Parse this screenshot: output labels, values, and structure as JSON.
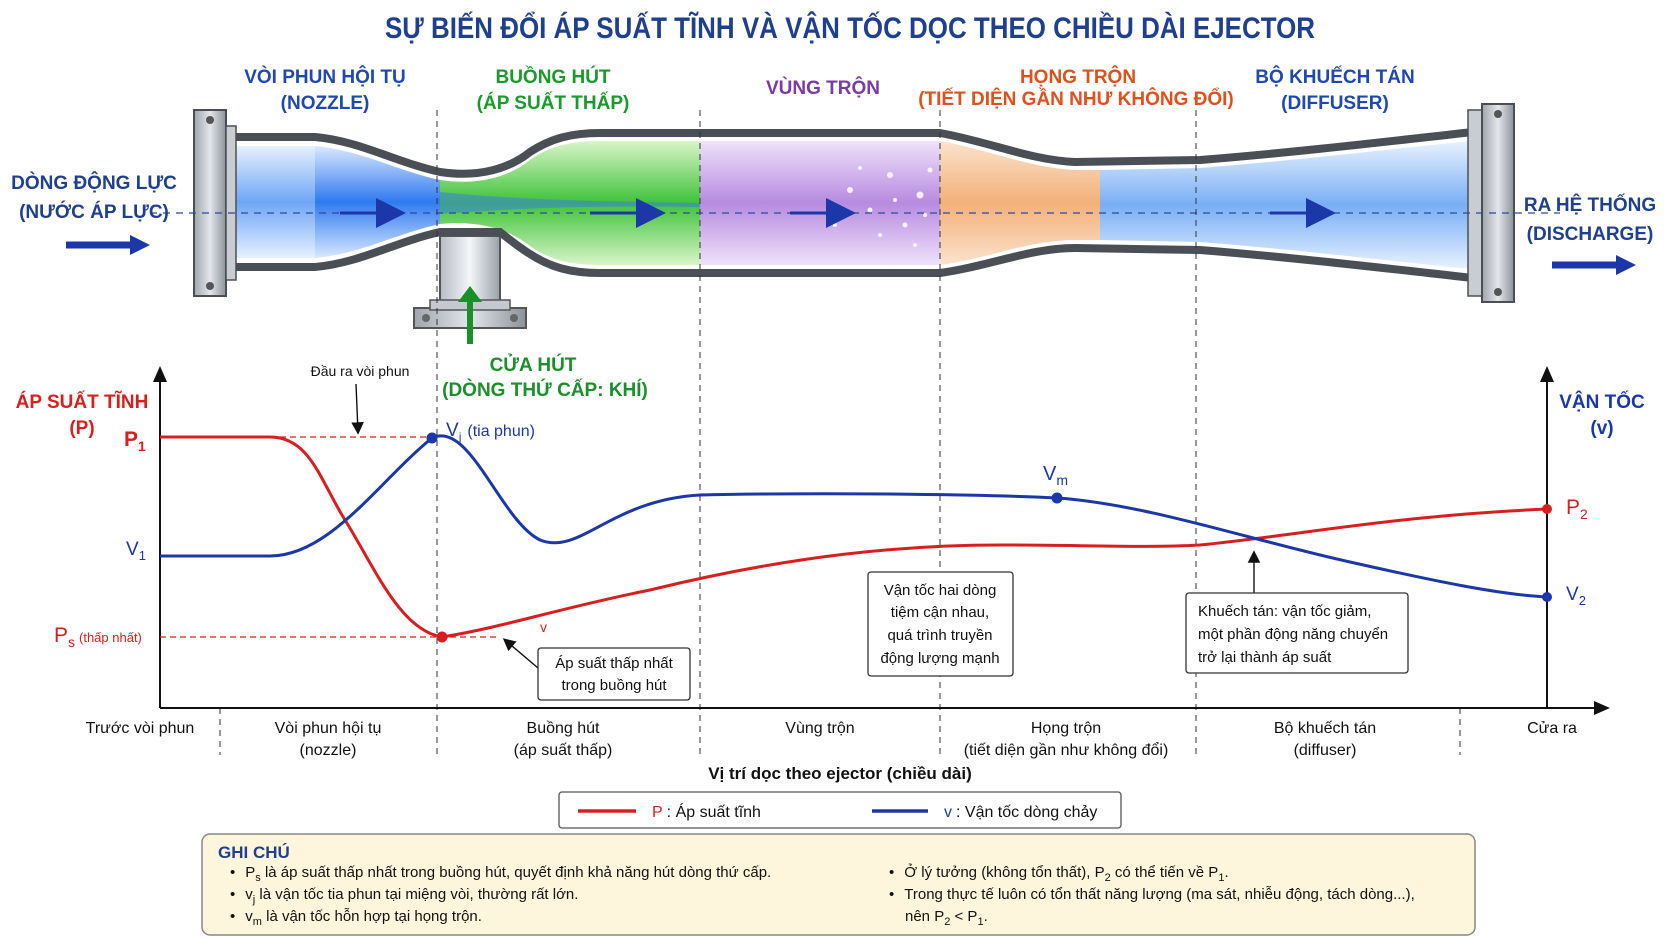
{
  "title": "SỰ BIẾN ĐỔI ÁP SUẤT TĨNH VÀ VẬN TỐC DỌC THEO CHIỀU DÀI EJECTOR",
  "sections": {
    "nozzle": {
      "line1": "VÒI PHUN HỘI TỤ",
      "line2": "(NOZZLE)",
      "color": "#1f49b0"
    },
    "suction_chamber": {
      "line1": "BUỒNG HÚT",
      "line2": "(ÁP SUẤT THẤP)",
      "color": "#1a9a2a"
    },
    "mixing_zone": {
      "line1": "VÙNG TRỘN",
      "color": "#7a3aa8"
    },
    "mixing_throat": {
      "line1": "HỌNG TRỘN",
      "line2": "(TIẾT DIỆN GẦN NHƯ KHÔNG ĐỔI)",
      "color": "#e0501c"
    },
    "diffuser": {
      "line1": "BỘ KHUẾCH TÁN",
      "line2": "(DIFFUSER)",
      "color": "#1f49b0"
    }
  },
  "inlet": {
    "line1": "DÒNG ĐỘNG LỰC",
    "line2": "(NƯỚC ÁP LỰC)"
  },
  "outlet": {
    "line1": "RA HỆ THỐNG",
    "line2": "(DISCHARGE)"
  },
  "suction_port": {
    "line1": "CỬA HÚT",
    "line2": "(DÒNG THỨ CẤP: KHÍ)"
  },
  "chart": {
    "left_axis": {
      "line1": "ÁP SUẤT TĨNH",
      "line2": "(P)"
    },
    "right_axis": {
      "line1": "VẬN TỐC",
      "line2": "(v)"
    },
    "labels": {
      "P1": "P",
      "P1_sub": "1",
      "V1": "V",
      "V1_sub": "1",
      "Ps": "P",
      "Ps_sub": "s",
      "Ps_note": "(thấp nhất)",
      "P2": "P",
      "P2_sub": "2",
      "V2": "V",
      "V2_sub": "2",
      "Vj": "V",
      "Vj_sub": "j",
      "Vj_note": "(tia phun)",
      "Vm": "V",
      "Vm_sub": "m",
      "v_mark": "v"
    },
    "nozzle_exit_note": "Đầu ra vòi phun",
    "x_title": "Vị trí dọc theo ejector (chiều dài)",
    "x_categories": [
      {
        "line1": "Trước vòi phun",
        "line2": ""
      },
      {
        "line1": "Vòi phun hội tụ",
        "line2": "(nozzle)"
      },
      {
        "line1": "Buồng hút",
        "line2": "(áp suất thấp)"
      },
      {
        "line1": "Vùng trộn",
        "line2": ""
      },
      {
        "line1": "Họng trộn",
        "line2": "(tiết diện gần như không đổi)"
      },
      {
        "line1": "Bộ khuếch tán",
        "line2": "(diffuser)"
      },
      {
        "line1": "Cửa ra",
        "line2": ""
      }
    ],
    "annotations": {
      "min_pressure": [
        "Áp suất thấp nhất",
        "trong buồng hút"
      ],
      "velocity_converge": [
        "Vận tốc hai dòng",
        "tiệm cận nhau,",
        "quá trình truyền",
        "động lượng mạnh"
      ],
      "diffusion": [
        "Khuếch tán: vận tốc giảm,",
        "một phần động năng chuyển",
        "trở lại thành áp suất"
      ]
    },
    "legend": {
      "pressure_key": "P",
      "pressure_text": ": Áp suất tĩnh",
      "velocity_key": "v",
      "velocity_text": ": Vận tốc dòng chảy"
    },
    "colors": {
      "pressure": "#d81f1f",
      "velocity": "#1c37a8"
    }
  },
  "notes": {
    "title": "GHI CHÚ",
    "left": [
      {
        "sym": "P",
        "sub": "s",
        "text": " là áp suất thấp nhất trong buồng hút, quyết định khả năng hút dòng thứ cấp."
      },
      {
        "sym": "v",
        "sub": "j",
        "text": " là vận tốc tia phun tại miệng vòi, thường rất lớn."
      },
      {
        "sym": "v",
        "sub": "m",
        "text": " là vận tốc hỗn hợp tại họng trộn."
      }
    ],
    "right1": {
      "a": "Ở lý tưởng (không tổn thất), P",
      "a_sub": "2",
      "b": " có thể tiến về P",
      "b_sub": "1",
      "c": "."
    },
    "right2": "Trong thực tế luôn có tổn thất năng lượng (ma sát, nhiễu động, tách dòng...),",
    "right3": {
      "a": "nên P",
      "a_sub": "2",
      "b": " < P",
      "b_sub": "1",
      "c": "."
    }
  }
}
